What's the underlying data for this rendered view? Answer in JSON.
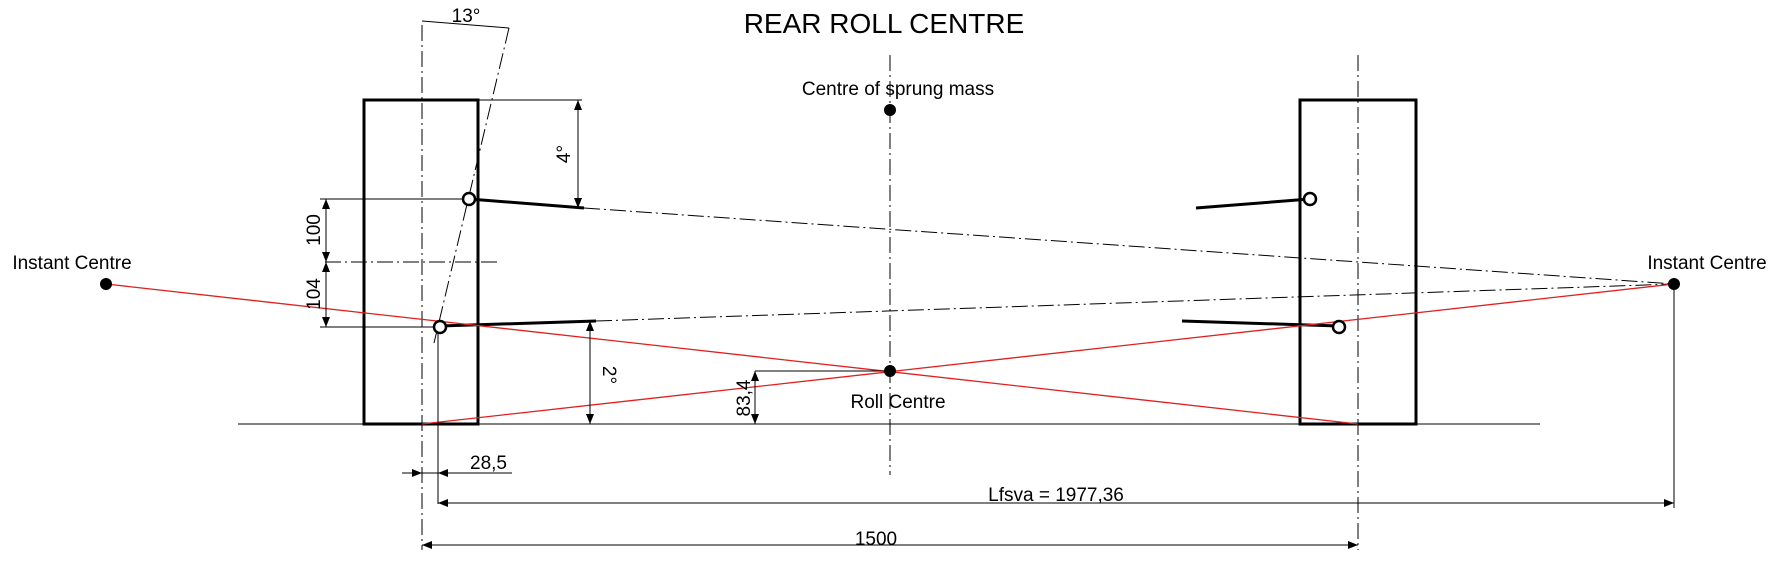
{
  "title": "REAR ROLL CENTRE",
  "labels": {
    "sprung_mass": "Centre of sprung mass",
    "instant_centre_left": "Instant Centre",
    "instant_centre_right": "Instant Centre",
    "roll_centre": "Roll Centre"
  },
  "dimensions": {
    "kingpin_angle": "13°",
    "upper_arm_angle": "4°",
    "lower_arm_angle": "2°",
    "upper_height": "100",
    "lower_height": "104",
    "roll_centre_height": "83,4",
    "scrub_offset": "28,5",
    "lfsva": "Lfsva = 1977,36",
    "track_width": "1500"
  }
}
